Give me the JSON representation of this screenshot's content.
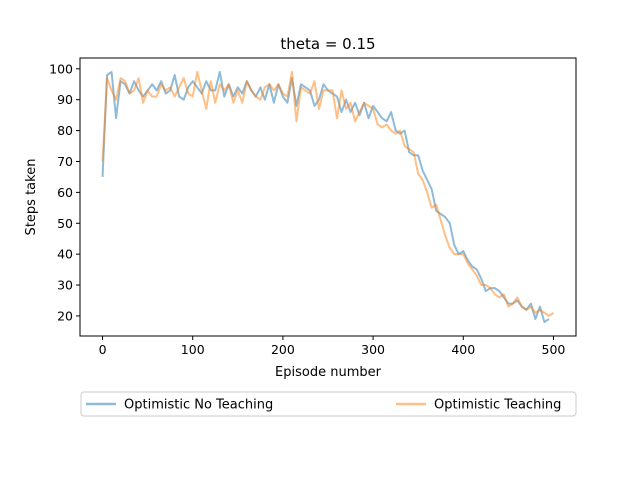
{
  "chart_data": {
    "type": "line",
    "title": "theta = 0.15",
    "xlabel": "Episode number",
    "ylabel": "Steps taken",
    "xlim": [
      -25,
      525
    ],
    "ylim": [
      13.5,
      103.5
    ],
    "xticks": [
      0,
      100,
      200,
      300,
      400,
      500
    ],
    "yticks": [
      20,
      30,
      40,
      50,
      60,
      70,
      80,
      90,
      100
    ],
    "grid": false,
    "legend_position": "bottom, below axes, two columns",
    "x": [
      0,
      5,
      10,
      15,
      20,
      25,
      30,
      35,
      40,
      45,
      50,
      55,
      60,
      65,
      70,
      75,
      80,
      85,
      90,
      95,
      100,
      105,
      110,
      115,
      120,
      125,
      130,
      135,
      140,
      145,
      150,
      155,
      160,
      165,
      170,
      175,
      180,
      185,
      190,
      195,
      200,
      205,
      210,
      215,
      220,
      225,
      230,
      235,
      240,
      245,
      250,
      255,
      260,
      265,
      270,
      275,
      280,
      285,
      290,
      295,
      300,
      305,
      310,
      315,
      320,
      325,
      330,
      335,
      340,
      345,
      350,
      355,
      360,
      365,
      370,
      375,
      380,
      385,
      390,
      395,
      400,
      405,
      410,
      415,
      420,
      425,
      430,
      435,
      440,
      445,
      450,
      455,
      460,
      465,
      470,
      475,
      480,
      485,
      490,
      495,
      500
    ],
    "series": [
      {
        "name": "Optimistic No Teaching",
        "color": "#1f77b4",
        "values": [
          65,
          98,
          99,
          84,
          96,
          95,
          92,
          96,
          93,
          91,
          93,
          95,
          93,
          96,
          92,
          93,
          98,
          91,
          90,
          94,
          96,
          94,
          92,
          96,
          93,
          93,
          99,
          91,
          95,
          91,
          94,
          92,
          96,
          93,
          91,
          94,
          90,
          95,
          89,
          95,
          91,
          89,
          97,
          88,
          95,
          94,
          93,
          88,
          90,
          95,
          93,
          92,
          91,
          86,
          90,
          86,
          89,
          85,
          89,
          84,
          88,
          86,
          84,
          83,
          86,
          80,
          79,
          80,
          73,
          72,
          72,
          67,
          64,
          61,
          54,
          53,
          52,
          50,
          43,
          40,
          41,
          38,
          36,
          35,
          32,
          28,
          29,
          29,
          28,
          26,
          24,
          24,
          25,
          23,
          22,
          24,
          19,
          23,
          18,
          19,
          null
        ],
        "opacity": 0.5
      },
      {
        "name": "Optimistic Teaching",
        "color": "#ff7f0e",
        "values": [
          70,
          97,
          93,
          90,
          97,
          96,
          92,
          93,
          97,
          89,
          93,
          91,
          91,
          95,
          93,
          94,
          91,
          94,
          97,
          92,
          91,
          99,
          93,
          87,
          96,
          89,
          95,
          93,
          95,
          89,
          93,
          89,
          96,
          93,
          91,
          90,
          94,
          95,
          93,
          95,
          92,
          91,
          99,
          83,
          94,
          93,
          92,
          96,
          87,
          93,
          93,
          93,
          84,
          93,
          87,
          89,
          83,
          86,
          89,
          88,
          87,
          82,
          81,
          82,
          80,
          79,
          80,
          75,
          74,
          73,
          66,
          64,
          60,
          55,
          56,
          51,
          46,
          42,
          40,
          40,
          40,
          37,
          35,
          33,
          30,
          30,
          29,
          27,
          26,
          27,
          23,
          24,
          26,
          23,
          22,
          23,
          21,
          22,
          21,
          20,
          21
        ],
        "opacity": 0.5
      }
    ]
  }
}
